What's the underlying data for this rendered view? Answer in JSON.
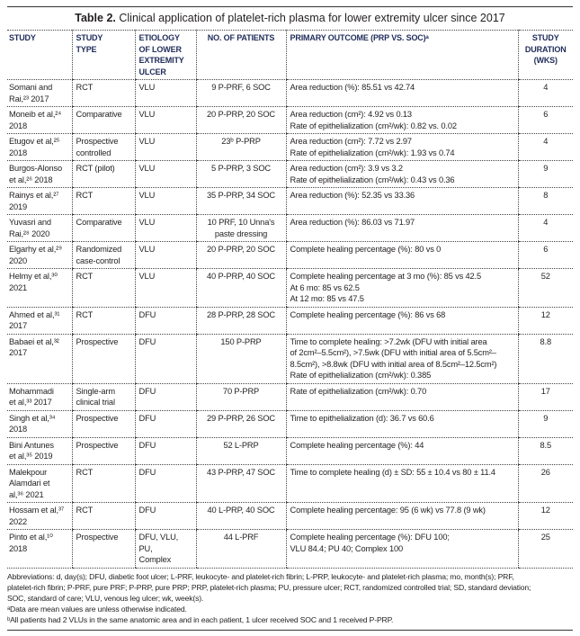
{
  "title": {
    "label": "Table 2.",
    "text": " Clinical application of platelet-rich plasma for lower extremity ulcer since 2017"
  },
  "headers": [
    [
      "STUDY"
    ],
    [
      "STUDY",
      "TYPE"
    ],
    [
      "ETIOLOGY",
      "OF LOWER",
      "EXTREMITY",
      "ULCER"
    ],
    [
      "NO. OF PATIENTS"
    ],
    [
      "PRIMARY OUTCOME (PRP VS. SOC)ᵃ"
    ],
    [
      "STUDY",
      "DURATION",
      "(WKS)"
    ]
  ],
  "rows": [
    {
      "study": [
        "Somani and",
        "Rai,²³ 2017"
      ],
      "type": [
        "RCT"
      ],
      "etiology": [
        "VLU"
      ],
      "patients": [
        "9 P-PRF, 6 SOC"
      ],
      "outcome": [
        "Area reduction (%): 85.51 vs 42.74"
      ],
      "duration": [
        "4"
      ]
    },
    {
      "study": [
        "Moneib et al,²⁴",
        "2018"
      ],
      "type": [
        "Comparative"
      ],
      "etiology": [
        "VLU"
      ],
      "patients": [
        "20 P-PRP, 20 SOC"
      ],
      "outcome": [
        "Area reduction (cm²): 4.92 vs 0.13",
        "Rate of epithelialization (cm²/wk): 0.82 vs. 0.02"
      ],
      "duration": [
        "6"
      ]
    },
    {
      "study": [
        "Etugov et al,²⁵",
        "2018"
      ],
      "type": [
        "Prospective",
        "controlled"
      ],
      "etiology": [
        "VLU"
      ],
      "patients": [
        "23ᵇ P-PRP"
      ],
      "outcome": [
        "Area reduction (cm²): 7.72 vs 2.97",
        "Rate of epithelialization (cm²/wk): 1.93 vs 0.74"
      ],
      "duration": [
        "4"
      ]
    },
    {
      "study": [
        "Burgos-Alonso",
        "et al,²⁶ 2018"
      ],
      "type": [
        "RCT (pilot)"
      ],
      "etiology": [
        "VLU"
      ],
      "patients": [
        "5 P-PRP, 3 SOC"
      ],
      "outcome": [
        "Area reduction (cm²): 3.9 vs 3.2",
        "Rate of epithelialization (cm²/wk): 0.43 vs 0.36"
      ],
      "duration": [
        "9"
      ]
    },
    {
      "study": [
        "Rainys et al,²⁷",
        "2019"
      ],
      "type": [
        "RCT"
      ],
      "etiology": [
        "VLU"
      ],
      "patients": [
        "35 P-PRP, 34 SOC"
      ],
      "outcome": [
        "Area reduction (%): 52.35 vs 33.36"
      ],
      "duration": [
        "8"
      ]
    },
    {
      "study": [
        "Yuvasri and",
        "Rai,²⁸ 2020"
      ],
      "type": [
        "Comparative"
      ],
      "etiology": [
        "VLU"
      ],
      "patients": [
        "10 PRF, 10 Unna's",
        "paste dressing"
      ],
      "outcome": [
        "Area reduction (%): 86.03 vs 71.97"
      ],
      "duration": [
        "4"
      ]
    },
    {
      "study": [
        "Elgarhy et al,²⁹",
        "2020"
      ],
      "type": [
        "Randomized",
        "case-control"
      ],
      "etiology": [
        "VLU"
      ],
      "patients": [
        "20 P-PRP, 20 SOC"
      ],
      "outcome": [
        "Complete healing percentage (%): 80 vs 0"
      ],
      "duration": [
        "6"
      ]
    },
    {
      "study": [
        "Helmy et al,³⁰",
        "2021"
      ],
      "type": [
        "RCT"
      ],
      "etiology": [
        "VLU"
      ],
      "patients": [
        "40 P-PRP, 40 SOC"
      ],
      "outcome": [
        "Complete healing percentage at 3 mo (%): 85 vs 42.5",
        "At 6 mo: 85 vs 62.5",
        "At 12 mo: 85 vs 47.5"
      ],
      "duration": [
        "52"
      ]
    },
    {
      "study": [
        "Ahmed et al,³¹",
        "2017"
      ],
      "type": [
        "RCT"
      ],
      "etiology": [
        "DFU"
      ],
      "patients": [
        "28 P-PRP, 28 SOC"
      ],
      "outcome": [
        "Complete healing percentage (%): 86 vs 68"
      ],
      "duration": [
        "12"
      ]
    },
    {
      "study": [
        "Babaei et al,³²",
        "2017"
      ],
      "type": [
        "Prospective"
      ],
      "etiology": [
        "DFU"
      ],
      "patients": [
        "150 P-PRP"
      ],
      "outcome": [
        "Time to complete healing: >7.2wk (DFU with initial area",
        "of 2cm²–5.5cm²), >7.5wk (DFU with initial area of 5.5cm²–",
        "8.5cm²), >8.8wk (DFU with initial area of 8.5cm²–12.5cm²)",
        "Rate of epithelialization (cm²/wk): 0.385"
      ],
      "duration": [
        "8.8"
      ]
    },
    {
      "study": [
        "Mohammadi",
        "et al,³³ 2017"
      ],
      "type": [
        "Single-arm",
        "clinical trial"
      ],
      "etiology": [
        "DFU"
      ],
      "patients": [
        "70 P-PRP"
      ],
      "outcome": [
        "Rate of epithelialization (cm²/wk): 0.70"
      ],
      "duration": [
        "17"
      ]
    },
    {
      "study": [
        "Singh et al,³⁴",
        "2018"
      ],
      "type": [
        "Prospective"
      ],
      "etiology": [
        "DFU"
      ],
      "patients": [
        "29 P-PRP, 26 SOC"
      ],
      "outcome": [
        "Time to epithelialization (d): 36.7 vs 60.6"
      ],
      "duration": [
        "9"
      ]
    },
    {
      "study": [
        "Bini Antunes",
        "et al,³⁵ 2019"
      ],
      "type": [
        "Prospective"
      ],
      "etiology": [
        "DFU"
      ],
      "patients": [
        "52 L-PRP"
      ],
      "outcome": [
        "Complete healing percentage (%): 44"
      ],
      "duration": [
        "8.5"
      ]
    },
    {
      "study": [
        "Malekpour",
        "Alamdari et",
        "al,³⁶ 2021"
      ],
      "type": [
        "RCT"
      ],
      "etiology": [
        "DFU"
      ],
      "patients": [
        "43 P-PRP, 47 SOC"
      ],
      "outcome": [
        "Time to complete healing (d) ± SD: 55 ± 10.4 vs 80 ± 11.4"
      ],
      "duration": [
        "26"
      ]
    },
    {
      "study": [
        "Hossam et al,³⁷",
        "2022"
      ],
      "type": [
        "RCT"
      ],
      "etiology": [
        "DFU"
      ],
      "patients": [
        "40 L-PRP, 40 SOC"
      ],
      "outcome": [
        "Complete healing percentage: 95 (6 wk) vs 77.8 (9 wk)"
      ],
      "duration": [
        "12"
      ]
    },
    {
      "study": [
        "Pinto et al,¹⁰",
        "2018"
      ],
      "type": [
        "Prospective"
      ],
      "etiology": [
        "DFU, VLU, PU,",
        "Complex"
      ],
      "patients": [
        "44 L-PRF"
      ],
      "outcome": [
        "Complete healing percentage (%): DFU 100;",
        "VLU 84.4; PU 40; Complex 100"
      ],
      "duration": [
        "25"
      ]
    }
  ],
  "footer": [
    "Abbreviations: d, day(s); DFU, diabetic foot ulcer; L-PRF, leukocyte- and platelet-rich fibrin; L-PRP, leukocyte- and platelet-rich plasma; mo, month(s); PRF,",
    "platelet-rich fibrin; P-PRF, pure PRF; P-PRP, pure PRP; PRP, platelet-rich plasma; PU, pressure ulcer; RCT, randomized controlled trial; SD, standard deviation;",
    "SOC, standard of care; VLU, venous leg ulcer; wk, week(s).",
    "ᵃData are mean values are unless otherwise indicated.",
    "ᵇAll patients had 2 VLUs in the same anatomic area and in each patient, 1 ulcer received SOC and 1 received P-PRP."
  ]
}
